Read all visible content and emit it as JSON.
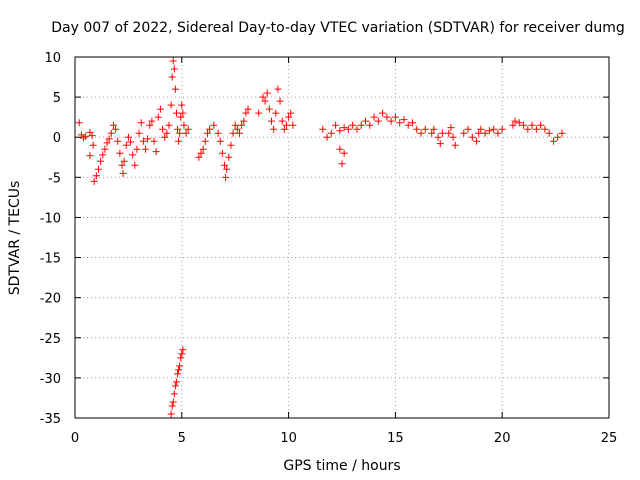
{
  "chart_data": {
    "type": "scatter",
    "title": "Day 007 of 2022, Sidereal Day-to-day VTEC variation (SDTVAR) for receiver dumg",
    "xlabel": "GPS time / hours",
    "ylabel": "SDTVAR / TECUs",
    "xlim": [
      0,
      25
    ],
    "ylim": [
      -35,
      10
    ],
    "xticks": [
      0,
      5,
      10,
      15,
      20,
      25
    ],
    "xtick_labels": [
      "0",
      "5",
      "10",
      "15",
      "20",
      "25"
    ],
    "yticks": [
      10,
      5,
      0,
      -5,
      -10,
      -15,
      -20,
      -25,
      -30,
      -35
    ],
    "ytick_labels": [
      "10",
      "5",
      "0",
      "-5",
      "-10",
      "-15",
      "-20",
      "-25",
      "-30",
      "-35"
    ],
    "grid": true,
    "marker": "+",
    "marker_color": "#ff0000",
    "series": [
      {
        "name": "SDTVAR",
        "points": [
          [
            0.2,
            1.8
          ],
          [
            0.3,
            0.3
          ],
          [
            0.4,
            -0.1
          ],
          [
            0.5,
            0.1
          ],
          [
            0.7,
            0.6
          ],
          [
            0.8,
            0.2
          ],
          [
            0.7,
            -2.3
          ],
          [
            0.85,
            -1.0
          ],
          [
            0.9,
            -5.5
          ],
          [
            1.0,
            -4.8
          ],
          [
            1.1,
            -4.0
          ],
          [
            1.2,
            -3.0
          ],
          [
            1.3,
            -2.2
          ],
          [
            1.4,
            -1.5
          ],
          [
            1.5,
            -0.7
          ],
          [
            1.6,
            -0.2
          ],
          [
            1.7,
            0.5
          ],
          [
            1.8,
            1.5
          ],
          [
            1.9,
            1.0
          ],
          [
            2.0,
            -0.5
          ],
          [
            2.1,
            -2.0
          ],
          [
            2.2,
            -3.5
          ],
          [
            2.25,
            -4.5
          ],
          [
            2.3,
            -3.0
          ],
          [
            2.4,
            -1.0
          ],
          [
            2.5,
            0.0
          ],
          [
            2.6,
            -0.6
          ],
          [
            2.7,
            -2.2
          ],
          [
            2.8,
            -3.5
          ],
          [
            2.9,
            -1.5
          ],
          [
            3.0,
            0.5
          ],
          [
            3.1,
            1.8
          ],
          [
            3.2,
            -0.5
          ],
          [
            3.3,
            -1.5
          ],
          [
            3.4,
            -0.2
          ],
          [
            3.5,
            1.5
          ],
          [
            3.6,
            2.0
          ],
          [
            3.7,
            -0.5
          ],
          [
            3.8,
            -1.8
          ],
          [
            3.9,
            2.5
          ],
          [
            4.0,
            3.5
          ],
          [
            4.1,
            1.0
          ],
          [
            4.2,
            0.0
          ],
          [
            4.3,
            0.5
          ],
          [
            4.4,
            1.5
          ],
          [
            4.5,
            4.0
          ],
          [
            4.55,
            7.5
          ],
          [
            4.6,
            9.5
          ],
          [
            4.65,
            8.5
          ],
          [
            4.7,
            6.0
          ],
          [
            4.75,
            3.0
          ],
          [
            4.8,
            1.0
          ],
          [
            4.85,
            -0.5
          ],
          [
            4.9,
            0.5
          ],
          [
            4.95,
            2.5
          ],
          [
            5.0,
            4.0
          ],
          [
            5.05,
            3.0
          ],
          [
            5.1,
            1.5
          ],
          [
            5.2,
            0.5
          ],
          [
            5.3,
            1.0
          ],
          [
            4.5,
            -34.5
          ],
          [
            4.55,
            -33.5
          ],
          [
            4.6,
            -33.0
          ],
          [
            4.65,
            -32.0
          ],
          [
            4.7,
            -31.0
          ],
          [
            4.75,
            -30.5
          ],
          [
            4.8,
            -29.5
          ],
          [
            4.85,
            -29.0
          ],
          [
            4.9,
            -28.5
          ],
          [
            4.95,
            -27.5
          ],
          [
            5.0,
            -27.0
          ],
          [
            5.05,
            -26.5
          ],
          [
            5.8,
            -2.5
          ],
          [
            5.9,
            -2.0
          ],
          [
            6.0,
            -1.5
          ],
          [
            6.1,
            -0.5
          ],
          [
            6.2,
            0.5
          ],
          [
            6.3,
            1.0
          ],
          [
            6.5,
            1.5
          ],
          [
            6.7,
            0.5
          ],
          [
            6.8,
            -0.5
          ],
          [
            6.9,
            -2.0
          ],
          [
            7.0,
            -3.5
          ],
          [
            7.05,
            -5.0
          ],
          [
            7.1,
            -4.0
          ],
          [
            7.2,
            -2.5
          ],
          [
            7.3,
            -1.0
          ],
          [
            7.4,
            0.5
          ],
          [
            7.5,
            1.5
          ],
          [
            7.6,
            1.0
          ],
          [
            7.7,
            0.5
          ],
          [
            7.8,
            1.5
          ],
          [
            7.9,
            2.0
          ],
          [
            8.0,
            3.0
          ],
          [
            8.1,
            3.5
          ],
          [
            8.6,
            3.0
          ],
          [
            8.8,
            5.0
          ],
          [
            8.9,
            4.5
          ],
          [
            9.0,
            5.5
          ],
          [
            9.1,
            3.5
          ],
          [
            9.2,
            2.0
          ],
          [
            9.3,
            1.0
          ],
          [
            9.4,
            3.0
          ],
          [
            9.5,
            6.0
          ],
          [
            9.6,
            4.5
          ],
          [
            9.7,
            2.0
          ],
          [
            9.8,
            1.0
          ],
          [
            9.9,
            1.5
          ],
          [
            10.0,
            2.5
          ],
          [
            10.1,
            3.0
          ],
          [
            10.2,
            1.5
          ],
          [
            11.6,
            1.0
          ],
          [
            11.8,
            0.0
          ],
          [
            12.0,
            0.5
          ],
          [
            12.2,
            1.5
          ],
          [
            12.4,
            0.8
          ],
          [
            12.6,
            1.2
          ],
          [
            12.4,
            -1.5
          ],
          [
            12.5,
            -3.3
          ],
          [
            12.6,
            -2.0
          ],
          [
            12.8,
            1.0
          ],
          [
            13.0,
            1.5
          ],
          [
            13.2,
            1.0
          ],
          [
            13.4,
            1.5
          ],
          [
            13.6,
            2.0
          ],
          [
            13.8,
            1.5
          ],
          [
            14.0,
            2.5
          ],
          [
            14.2,
            2.0
          ],
          [
            14.4,
            3.0
          ],
          [
            14.6,
            2.5
          ],
          [
            14.8,
            2.0
          ],
          [
            15.0,
            2.5
          ],
          [
            15.2,
            1.8
          ],
          [
            15.4,
            2.2
          ],
          [
            15.6,
            1.5
          ],
          [
            15.8,
            1.8
          ],
          [
            16.0,
            1.0
          ],
          [
            16.2,
            0.5
          ],
          [
            16.4,
            1.0
          ],
          [
            16.7,
            0.5
          ],
          [
            16.8,
            1.0
          ],
          [
            17.0,
            0.0
          ],
          [
            17.1,
            -0.8
          ],
          [
            17.2,
            0.5
          ],
          [
            17.5,
            0.5
          ],
          [
            17.6,
            1.2
          ],
          [
            17.7,
            0.0
          ],
          [
            17.8,
            -1.0
          ],
          [
            18.2,
            0.5
          ],
          [
            18.4,
            1.0
          ],
          [
            18.6,
            0.0
          ],
          [
            18.8,
            -0.5
          ],
          [
            18.9,
            0.5
          ],
          [
            19.0,
            1.0
          ],
          [
            19.2,
            0.5
          ],
          [
            19.4,
            0.8
          ],
          [
            19.6,
            1.0
          ],
          [
            19.8,
            0.5
          ],
          [
            20.0,
            1.0
          ],
          [
            20.5,
            1.5
          ],
          [
            20.6,
            2.0
          ],
          [
            20.8,
            1.8
          ],
          [
            21.0,
            1.5
          ],
          [
            21.2,
            1.0
          ],
          [
            21.4,
            1.5
          ],
          [
            21.6,
            1.0
          ],
          [
            21.8,
            1.5
          ],
          [
            22.0,
            1.0
          ],
          [
            22.2,
            0.5
          ],
          [
            22.4,
            -0.5
          ],
          [
            22.6,
            0.0
          ],
          [
            22.8,
            0.5
          ]
        ]
      }
    ]
  }
}
